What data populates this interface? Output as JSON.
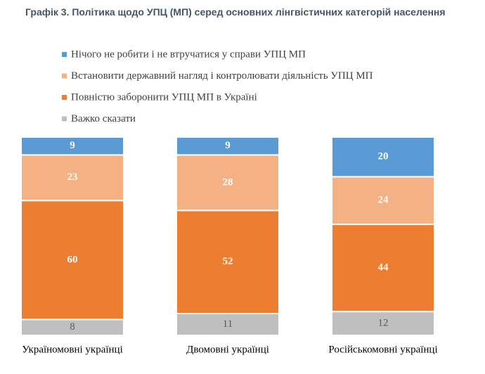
{
  "chart_data": {
    "type": "stacked_bar",
    "title": "Графік 3. Політика щодо УПЦ (МП) серед основних лінгвістичних категорій населення",
    "categories": [
      "Україномовні українці",
      "Двомовні українці",
      "Російськомовні українці"
    ],
    "series": [
      {
        "name": "Нічого не робити і не втручатися у справи УПЦ МП",
        "color": "#5b9bd5",
        "label_color": "#ffffff",
        "values": [
          9,
          9,
          20
        ]
      },
      {
        "name": "Встановити державний нагляд і контролювати діяльність УПЦ МП",
        "color": "#f4b183",
        "label_color": "#ffffff",
        "values": [
          23,
          28,
          24
        ]
      },
      {
        "name": "Повністю заборонити УПЦ МП в Україні",
        "color": "#ed7d31",
        "label_color": "#ffffff",
        "values": [
          60,
          52,
          44
        ]
      },
      {
        "name": "Важко сказати",
        "color": "#bfbfbf",
        "label_color": "#595959",
        "values": [
          8,
          11,
          12
        ]
      }
    ],
    "ylim": [
      0,
      100
    ]
  }
}
